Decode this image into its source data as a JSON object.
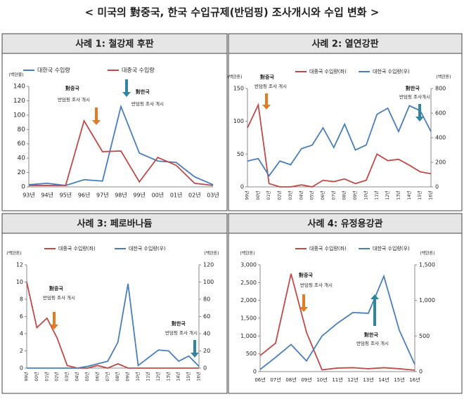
{
  "title": "< 미국의 對중국, 한국 수입규제(반덤핑) 조사개시와 수입 변화 >",
  "chart_data": [
    {
      "type": "line",
      "title": "사례 1: 철강제 후판",
      "categories": [
        "93년",
        "94년",
        "95년",
        "96년",
        "97년",
        "98년",
        "99년",
        "00년",
        "01년",
        "02년",
        "03년"
      ],
      "series": [
        {
          "name": "대한국 수입량",
          "color": "#4a7ebb",
          "values": [
            3,
            5,
            2,
            10,
            8,
            112,
            47,
            36,
            34,
            14,
            3
          ]
        },
        {
          "name": "대중국 수입량",
          "color": "#be4b48",
          "values": [
            2,
            2,
            2,
            92,
            49,
            50,
            7,
            41,
            30,
            5,
            2
          ]
        }
      ],
      "y_label": "(백만불)",
      "ylim": [
        0,
        140
      ],
      "yticks": [
        0,
        20,
        40,
        60,
        80,
        100,
        120,
        140
      ],
      "annotations": [
        [
          "對중국",
          "반덤핑 조사 개시"
        ],
        [
          "對한국",
          "반덤핑 조사 개시"
        ]
      ]
    },
    {
      "type": "line",
      "title": "사례 2: 열연강판",
      "categories": [
        "99년",
        "00년",
        "01년",
        "02년",
        "03년",
        "04년",
        "05년",
        "06년",
        "07년",
        "08년",
        "09년",
        "10년",
        "11년",
        "12년",
        "13년",
        "14년",
        "15년",
        "16년"
      ],
      "series": [
        {
          "name": "대중국 수입량(좌)",
          "color": "#be4b48",
          "values": [
            90,
            125,
            5,
            0,
            0,
            3,
            0,
            10,
            8,
            12,
            5,
            10,
            50,
            40,
            42,
            33,
            23,
            20
          ]
        },
        {
          "name": "대한국 수입량(우)",
          "color": "#4a7ebb",
          "axis": "y2",
          "values": [
            210,
            230,
            90,
            210,
            180,
            310,
            340,
            480,
            320,
            510,
            300,
            340,
            590,
            640,
            450,
            660,
            620,
            450
          ]
        }
      ],
      "y_label": "(백만톤)",
      "ylim": [
        0,
        150
      ],
      "yticks": [
        0,
        50,
        100,
        150
      ],
      "y2_label": "(백만톤)",
      "y2lim": [
        0,
        800
      ],
      "y2ticks": [
        0,
        200,
        400,
        600,
        800
      ],
      "annotations": [
        [
          "對중국",
          "반덤핑 조사 개시"
        ],
        [
          "對한국",
          "반덤핑 조사개시"
        ]
      ]
    },
    {
      "type": "line",
      "title": "사례 3: 페로바나듐",
      "categories": [
        "99년",
        "00년",
        "01년",
        "02년",
        "03년",
        "04년",
        "05년",
        "06년",
        "07년",
        "08년",
        "09년",
        "10년",
        "11년",
        "12년",
        "13년",
        "14년",
        "15년",
        "16년"
      ],
      "series": [
        {
          "name": "대중국 수입량(좌)",
          "color": "#be4b48",
          "values": [
            10,
            4.7,
            5.8,
            3.5,
            0.3,
            0,
            0,
            0.3,
            0,
            0.5,
            0,
            0,
            0,
            0,
            0,
            0,
            0,
            0
          ]
        },
        {
          "name": "대한국 수입량(우)",
          "color": "#4a7ebb",
          "axis": "y2",
          "values": [
            0,
            0,
            0,
            0,
            0,
            0,
            2,
            5,
            8,
            30,
            98,
            3,
            12,
            21,
            20,
            8,
            14,
            2
          ]
        }
      ],
      "y_label": "(백만톤)",
      "ylim": [
        0,
        12
      ],
      "yticks": [
        0,
        2,
        4,
        6,
        8,
        10,
        12
      ],
      "y2_label": "(백만톤)",
      "y2lim": [
        0,
        120
      ],
      "y2ticks": [
        0,
        20,
        40,
        60,
        80,
        100,
        120
      ],
      "annotations": [
        [
          "對중국",
          "반덤핑 조사 개시"
        ],
        [
          "對한국",
          "반덤핑 조사 개시"
        ]
      ]
    },
    {
      "type": "line",
      "title": "사례 4: 유정용강관",
      "categories": [
        "06년",
        "07년",
        "08년",
        "09년",
        "10년",
        "11년",
        "12년",
        "13년",
        "14년",
        "15년",
        "16년"
      ],
      "series": [
        {
          "name": "대중국 수입량(좌)",
          "color": "#be4b48",
          "values": [
            450,
            800,
            2750,
            1100,
            50,
            100,
            110,
            80,
            110,
            80,
            40
          ]
        },
        {
          "name": "대한국 수입량(우)",
          "color": "#4a7ebb",
          "axis": "y2",
          "values": [
            30,
            200,
            380,
            150,
            500,
            680,
            830,
            820,
            1340,
            580,
            100
          ]
        }
      ],
      "y_label": "(백만톤)",
      "ylim": [
        0,
        3000
      ],
      "yticks": [
        0,
        500,
        {
          "value": 1000,
          "label": "1,000"
        },
        {
          "value": 1500,
          "label": "1,500"
        },
        {
          "value": 2000,
          "label": "2,000"
        },
        {
          "value": 2500,
          "label": "2,500"
        },
        {
          "value": 3000,
          "label": "3,000"
        }
      ],
      "y2_label": "(백만톤)",
      "y2lim": [
        0,
        1500
      ],
      "y2ticks": [
        0,
        500,
        {
          "value": 1000,
          "label": "1,000"
        },
        {
          "value": 1500,
          "label": "1,500"
        }
      ],
      "annotations": [
        [
          "對중국",
          "반덤핑 조사 개시"
        ],
        [
          "對한국",
          "반덤핑 조사 개시"
        ]
      ]
    }
  ]
}
